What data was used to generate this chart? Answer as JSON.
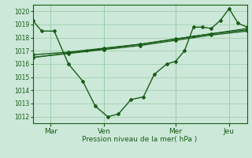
{
  "bg_color": "#cce8d8",
  "plot_bg_color": "#cce8d8",
  "grid_color": "#99ccaa",
  "line_color": "#1a5c1a",
  "xlabel": "Pression niveau de la mer( hPa )",
  "ylim": [
    1011.5,
    1020.5
  ],
  "yticks": [
    1012,
    1013,
    1014,
    1015,
    1016,
    1017,
    1018,
    1019,
    1020
  ],
  "xtick_labels": [
    "Mar",
    "Ven",
    "Mer",
    "Jeu"
  ],
  "xtick_positions": [
    1,
    4,
    8,
    11
  ],
  "xlim": [
    0,
    12
  ],
  "series": [
    {
      "x": [
        0,
        0.5,
        1.2,
        2.0,
        2.8,
        3.5,
        4.2,
        4.8,
        5.5,
        6.2,
        6.8,
        7.5,
        8.0,
        8.5,
        9.0,
        9.5,
        10.0,
        10.5,
        11.0,
        11.5,
        12.0
      ],
      "y": [
        1019.3,
        1018.5,
        1018.5,
        1016.0,
        1014.7,
        1012.8,
        1012.0,
        1012.2,
        1013.3,
        1013.5,
        1015.2,
        1016.0,
        1016.2,
        1017.0,
        1018.8,
        1018.8,
        1018.7,
        1019.3,
        1020.2,
        1019.1,
        1018.8
      ],
      "marker": "D",
      "markersize": 2.0,
      "linewidth": 1.0
    },
    {
      "x": [
        0,
        2,
        4,
        6,
        8,
        10,
        12
      ],
      "y": [
        1016.7,
        1016.9,
        1017.2,
        1017.5,
        1017.9,
        1018.3,
        1018.6
      ],
      "marker": "D",
      "markersize": 2.0,
      "linewidth": 1.0
    },
    {
      "x": [
        0,
        2,
        4,
        6,
        8,
        10,
        12
      ],
      "y": [
        1016.5,
        1016.8,
        1017.1,
        1017.4,
        1017.8,
        1018.2,
        1018.5
      ],
      "marker": "D",
      "markersize": 2.0,
      "linewidth": 1.0
    },
    {
      "x": [
        0,
        3,
        6,
        9,
        12
      ],
      "y": [
        1016.5,
        1017.0,
        1017.5,
        1018.1,
        1018.7
      ],
      "marker": "D",
      "markersize": 1.5,
      "linewidth": 0.8
    }
  ]
}
